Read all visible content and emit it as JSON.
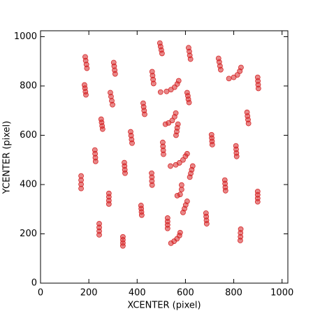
{
  "chart_data": {
    "type": "scatter",
    "x_label": "XCENTER (pixel)",
    "y_label": "YCENTER (pixel)",
    "xlim": [
      0,
      1024
    ],
    "ylim": [
      0,
      1024
    ],
    "xticks": [
      0,
      200,
      400,
      600,
      800,
      1000
    ],
    "yticks": [
      0,
      200,
      400,
      600,
      800,
      1000
    ],
    "color": "#d62728",
    "x": [
      185,
      187,
      190,
      192,
      182,
      184,
      186,
      188,
      251,
      253,
      255,
      257,
      225,
      226,
      227,
      228,
      168,
      168,
      168,
      168,
      283,
      283,
      283,
      283,
      243,
      243,
      243,
      243,
      303,
      305,
      307,
      309,
      289,
      292,
      295,
      298,
      373,
      375,
      377,
      379,
      347,
      348,
      349,
      350,
      341,
      341,
      341,
      341,
      462,
      464,
      466,
      468,
      425,
      427,
      429,
      431,
      460,
      461,
      461,
      462,
      416,
      417,
      418,
      419,
      494,
      497,
      500,
      503,
      506,
      507,
      508,
      509,
      526,
      526,
      526,
      526,
      497,
      522,
      540,
      555,
      566,
      572,
      517,
      530,
      545,
      555,
      560,
      569,
      566,
      564,
      561,
      538,
      560,
      575,
      590,
      600,
      607,
      630,
      626,
      622,
      618,
      566,
      578,
      584,
      584,
      607,
      601,
      596,
      590,
      540,
      553,
      565,
      575,
      578,
      607,
      610,
      612,
      615,
      613,
      616,
      618,
      621,
      708,
      709,
      710,
      711,
      685,
      686,
      687,
      688,
      737,
      740,
      743,
      746,
      780,
      800,
      815,
      825,
      830,
      763,
      764,
      765,
      766,
      809,
      810,
      811,
      812,
      855,
      857,
      859,
      861,
      899,
      900,
      901,
      902,
      899,
      899,
      899,
      899,
      829,
      828,
      828,
      827
    ],
    "y": [
      918,
      903,
      887,
      872,
      804,
      791,
      777,
      764,
      665,
      652,
      638,
      625,
      540,
      525,
      509,
      494,
      435,
      418,
      401,
      384,
      364,
      350,
      335,
      321,
      241,
      226,
      211,
      196,
      895,
      880,
      864,
      849,
      773,
      757,
      740,
      724,
      614,
      599,
      583,
      568,
      489,
      475,
      460,
      446,
      188,
      176,
      163,
      151,
      858,
      842,
      826,
      810,
      730,
      715,
      700,
      685,
      446,
      430,
      414,
      398,
      315,
      302,
      289,
      276,
      974,
      960,
      946,
      932,
      571,
      555,
      539,
      523,
      264,
      250,
      236,
      222,
      775,
      778,
      785,
      795,
      808,
      821,
      645,
      650,
      660,
      675,
      690,
      645,
      630,
      615,
      600,
      475,
      480,
      488,
      500,
      515,
      525,
      475,
      460,
      445,
      430,
      355,
      360,
      380,
      398,
      332,
      317,
      302,
      287,
      162,
      170,
      180,
      193,
      205,
      773,
      760,
      746,
      733,
      955,
      940,
      924,
      909,
      602,
      589,
      575,
      562,
      284,
      270,
      255,
      241,
      912,
      897,
      881,
      866,
      830,
      835,
      845,
      860,
      875,
      418,
      404,
      389,
      375,
      557,
      543,
      528,
      514,
      693,
      678,
      663,
      648,
      835,
      820,
      805,
      790,
      372,
      358,
      344,
      330,
      219,
      204,
      188,
      173
    ]
  }
}
